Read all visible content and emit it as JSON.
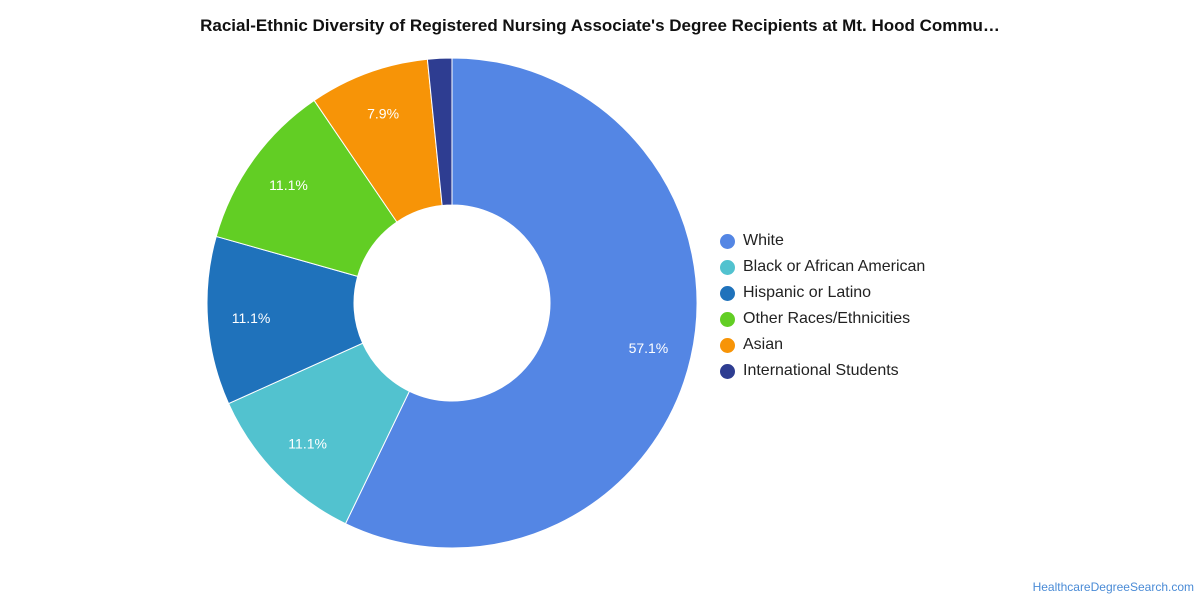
{
  "chart_data": {
    "type": "pie",
    "title": "Racial-Ethnic Diversity of Registered Nursing Associate's Degree Recipients at Mt. Hood Commu…",
    "donut": true,
    "legend_position": "right",
    "series": [
      {
        "name": "White",
        "value": 57.1,
        "label": "57.1%",
        "color": "#5486e4"
      },
      {
        "name": "Black or African American",
        "value": 11.1,
        "label": "11.1%",
        "color": "#52c2cf"
      },
      {
        "name": "Hispanic or Latino",
        "value": 11.1,
        "label": "11.1%",
        "color": "#1f72bb"
      },
      {
        "name": "Other Races/Ethnicities",
        "value": 11.1,
        "label": "11.1%",
        "color": "#62ce24"
      },
      {
        "name": "Asian",
        "value": 7.9,
        "label": "7.9%",
        "color": "#f79407"
      },
      {
        "name": "International Students",
        "value": 1.6,
        "label": "",
        "color": "#2e3d91"
      }
    ]
  },
  "source": "HealthcareDegreeSearch.com"
}
